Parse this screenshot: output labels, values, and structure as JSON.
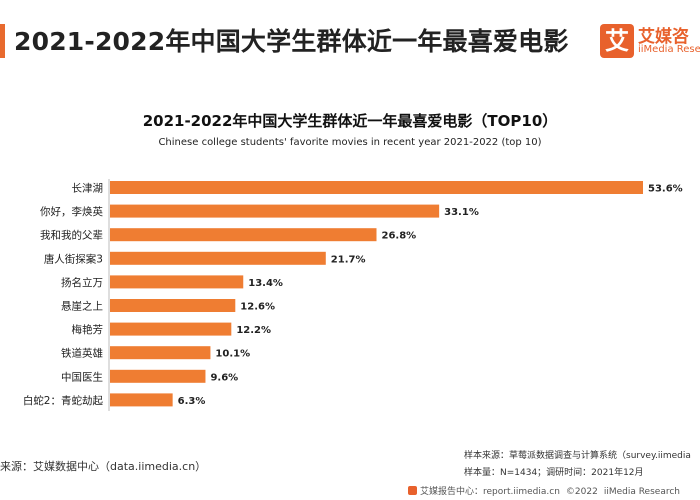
{
  "header": {
    "title": "2021-2022年中国大学生群体近一年最喜爱电影"
  },
  "brand": {
    "logo_char": "艾",
    "name_cn": "艾媒咨",
    "name_en": "iiMedia Rese"
  },
  "colors": {
    "bar": "#ef7d32",
    "accent": "#e8612c"
  },
  "chart_data": {
    "type": "bar",
    "orientation": "horizontal",
    "title": "2021-2022年中国大学生群体近一年最喜爱电影（TOP10）",
    "subtitle": "Chinese college students' favorite movies in recent year 2021-2022 (top 10)",
    "categories": [
      "长津湖",
      "你好，李焕英",
      "我和我的父辈",
      "唐人街探案3",
      "扬名立万",
      "悬崖之上",
      "梅艳芳",
      "铁道英雄",
      "中国医生",
      "白蛇2：青蛇劫起"
    ],
    "values": [
      53.6,
      33.1,
      26.8,
      21.7,
      13.4,
      12.6,
      12.2,
      10.1,
      9.6,
      6.3
    ],
    "value_labels": [
      "53.6%",
      "33.1%",
      "26.8%",
      "21.7%",
      "13.4%",
      "12.6%",
      "12.2%",
      "10.1%",
      "9.6%",
      "6.3%"
    ],
    "xlim": [
      0,
      53.6
    ],
    "grid": false,
    "legend": "none"
  },
  "footer": {
    "source": "来源：艾媒数据中心（data.iimedia.cn）",
    "sample_source": "样本来源：草莓派数据调查与计算系统（survey.iimedia",
    "sample_size": "样本量：N=1434；调研时间：2021年12月",
    "report_center": "艾媒报告中心：report.iimedia.cn",
    "copyright": "©2022",
    "company": "iiMedia Research"
  }
}
